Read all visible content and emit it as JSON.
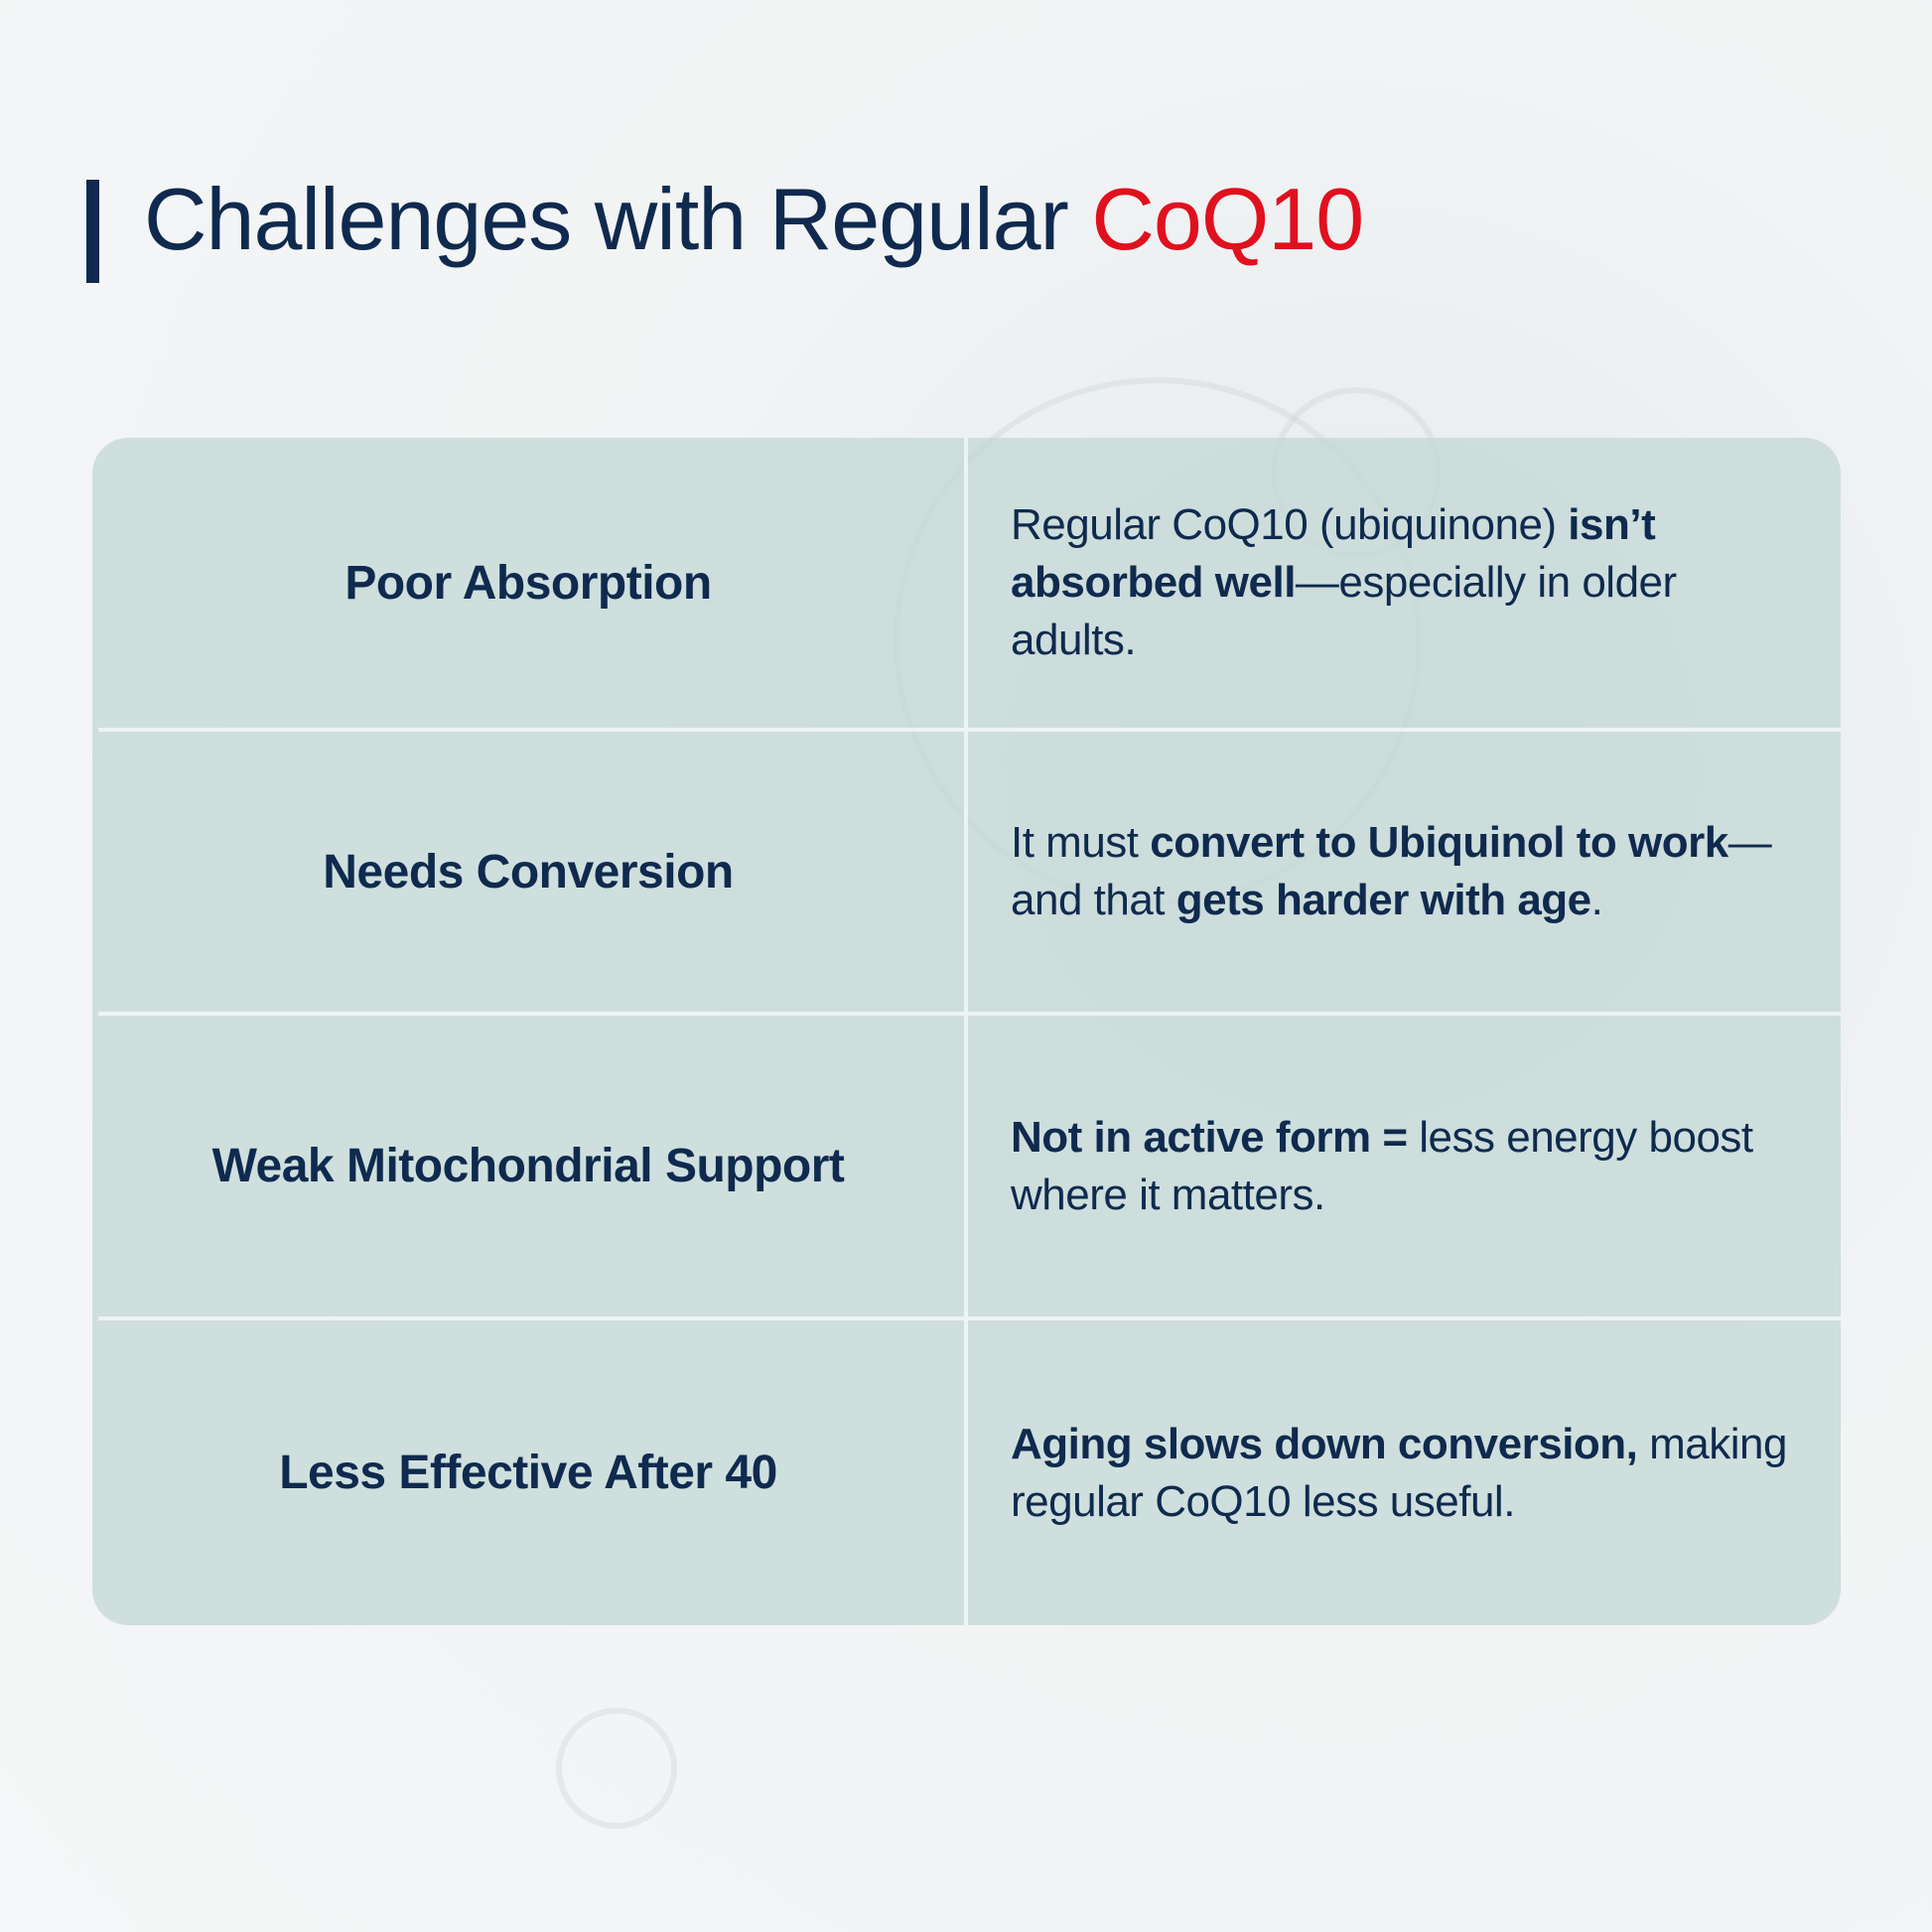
{
  "header": {
    "title": "Challenges with Regular",
    "title_accent": "CoQ10"
  },
  "colors": {
    "navy": "#0f2a4e",
    "accent": "#e0101e",
    "table_bg": "#c4d8d6"
  },
  "rows": [
    {
      "label": "Poor Absorption",
      "desc": [
        {
          "t": "Regular CoQ10 (ubiquinone) ",
          "b": false
        },
        {
          "t": "isn’t absorbed well",
          "b": true
        },
        {
          "t": "—especially in older adults.",
          "b": false
        }
      ]
    },
    {
      "label": "Needs Conversion",
      "desc": [
        {
          "t": "It must ",
          "b": false
        },
        {
          "t": "convert to Ubiquinol to work",
          "b": true
        },
        {
          "t": "—and that ",
          "b": false
        },
        {
          "t": "gets harder with age",
          "b": true
        },
        {
          "t": ".",
          "b": false
        }
      ]
    },
    {
      "label": "Weak Mitochondrial Support",
      "desc": [
        {
          "t": "Not in active form = ",
          "b": true
        },
        {
          "t": "less energy boost where it matters.",
          "b": false
        }
      ]
    },
    {
      "label": "Less Effective After 40",
      "desc": [
        {
          "t": "Aging slows down conversion,",
          "b": true
        },
        {
          "t": " making regular CoQ10 less useful.",
          "b": false
        }
      ]
    }
  ]
}
